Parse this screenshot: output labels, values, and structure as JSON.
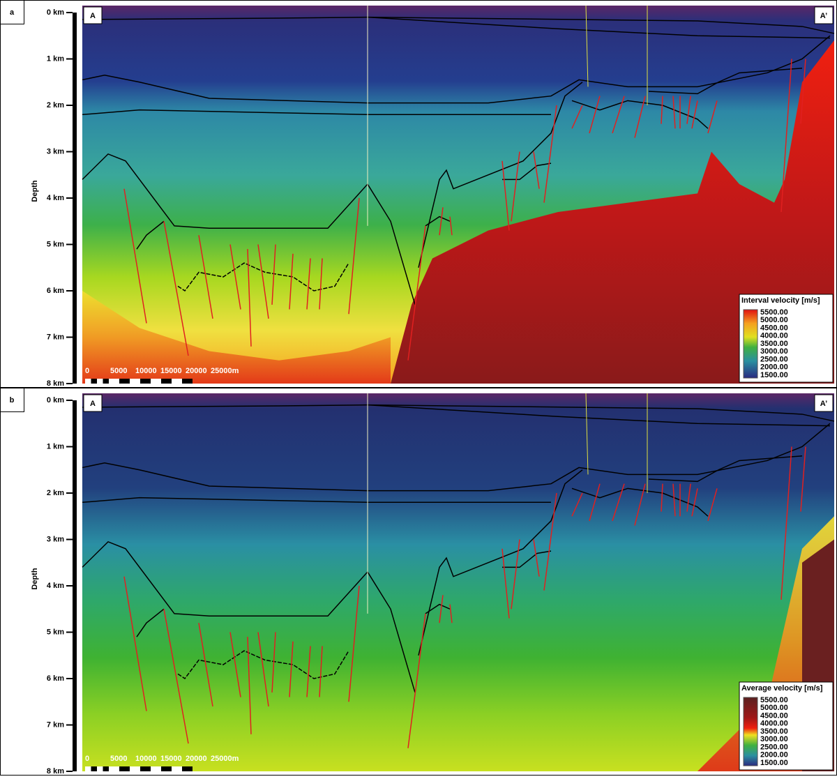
{
  "panels": [
    {
      "label": "a",
      "axis_label": "Depth",
      "depth_ticks": [
        "0 km",
        "1 km",
        "2 km",
        "3 km",
        "4 km",
        "5 km",
        "6 km",
        "7 km",
        "8 km"
      ],
      "start": "A",
      "end": "A’",
      "legend": {
        "title": "Interval velocity [m/s]",
        "labels": [
          "5500.00",
          "5000.00",
          "4500.00",
          "4000.00",
          "3500.00",
          "3000.00",
          "2500.00",
          "2000.00",
          "1500.00"
        ]
      },
      "scale_bar": [
        "0",
        "5000",
        "10000",
        "15000",
        "20000",
        "25000m"
      ]
    },
    {
      "label": "b",
      "axis_label": "Depth",
      "depth_ticks": [
        "0 km",
        "1 km",
        "2 km",
        "3 km",
        "4 km",
        "5 km",
        "6 km",
        "7 km",
        "8 km"
      ],
      "start": "A",
      "end": "A’",
      "legend": {
        "title": "Average velocity [m/s]",
        "labels": [
          "5500.00",
          "5000.00",
          "4500.00",
          "4000.00",
          "3500.00",
          "3000.00",
          "2500.00",
          "2000.00",
          "1500.00"
        ]
      },
      "scale_bar": [
        "0",
        "5000",
        "10000",
        "15000",
        "20000",
        "25000m"
      ]
    }
  ]
}
